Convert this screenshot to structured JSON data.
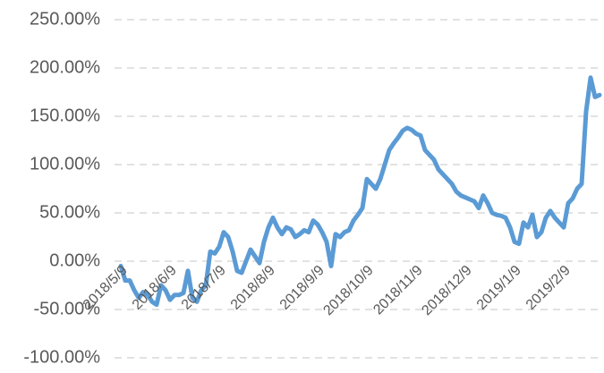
{
  "chart_data": {
    "type": "line",
    "categories": [
      "2018/5/9",
      null,
      null,
      null,
      null,
      null,
      null,
      null,
      null,
      null,
      null,
      "2018/6/9",
      null,
      null,
      null,
      null,
      null,
      null,
      null,
      null,
      null,
      null,
      "2018/7/9",
      null,
      null,
      null,
      null,
      null,
      null,
      null,
      null,
      null,
      null,
      "2018/8/9",
      null,
      null,
      null,
      null,
      null,
      null,
      null,
      null,
      null,
      null,
      "2018/9/9",
      null,
      null,
      null,
      null,
      null,
      null,
      null,
      null,
      null,
      null,
      "2018/10/9",
      null,
      null,
      null,
      null,
      null,
      null,
      null,
      null,
      null,
      null,
      "2018/11/9",
      null,
      null,
      null,
      null,
      null,
      null,
      null,
      null,
      null,
      null,
      "2018/12/9",
      null,
      null,
      null,
      null,
      null,
      null,
      null,
      null,
      null,
      null,
      "2019/1/9",
      null,
      null,
      null,
      null,
      null,
      null,
      null,
      null,
      null,
      null,
      "2019/2/9",
      null,
      null,
      null,
      null,
      null,
      null,
      null,
      null
    ],
    "series": [
      {
        "color": "#5b9bd5",
        "values": [
          -5,
          -20,
          -20,
          -30,
          -38,
          -32,
          -35,
          -42,
          -45,
          -25,
          -30,
          -40,
          -35,
          -35,
          -33,
          -10,
          -38,
          -42,
          -30,
          -25,
          10,
          8,
          15,
          30,
          25,
          10,
          -10,
          -12,
          0,
          12,
          5,
          -2,
          20,
          35,
          45,
          35,
          28,
          35,
          33,
          25,
          28,
          32,
          30,
          42,
          38,
          30,
          20,
          -5,
          28,
          25,
          30,
          32,
          42,
          48,
          55,
          85,
          80,
          75,
          85,
          100,
          115,
          122,
          128,
          135,
          138,
          136,
          132,
          130,
          115,
          110,
          105,
          95,
          90,
          85,
          80,
          72,
          68,
          66,
          64,
          62,
          55,
          68,
          60,
          50,
          48,
          47,
          45,
          35,
          20,
          18,
          40,
          35,
          48,
          25,
          30,
          45,
          52,
          45,
          40,
          35,
          60,
          65,
          75,
          80,
          155,
          190,
          170,
          172
        ]
      }
    ],
    "ylim": [
      -100,
      250
    ],
    "yticks": [
      {
        "value": -100,
        "label": "-100.00%"
      },
      {
        "value": -50,
        "label": "-50.00%"
      },
      {
        "value": 0,
        "label": "0.00%"
      },
      {
        "value": 50,
        "label": "50.00%"
      },
      {
        "value": 100,
        "label": "100.00%"
      },
      {
        "value": 150,
        "label": "150.00%"
      },
      {
        "value": 200,
        "label": "200.00%"
      },
      {
        "value": 250,
        "label": "250.00%"
      }
    ],
    "grid": true
  }
}
